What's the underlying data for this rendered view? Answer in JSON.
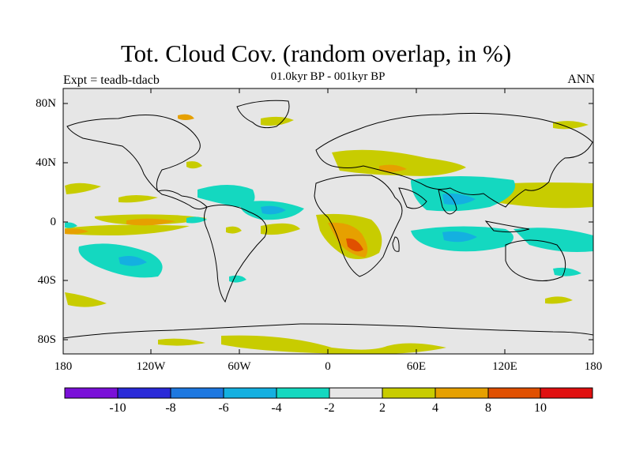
{
  "title": "Tot. Cloud Cov. (random overlap, in %)",
  "subtitle": "01.0kyr BP - 001kyr BP",
  "experiment_label": "Expt = teadb-tdacb",
  "season_label": "ANN",
  "lat_ticks": [
    "80N",
    "40N",
    "0",
    "40S",
    "80S"
  ],
  "lon_ticks": [
    "180",
    "120W",
    "60W",
    "0",
    "60E",
    "120E",
    "180"
  ],
  "colorbar": {
    "colors": [
      "#7a10d8",
      "#2a2ad8",
      "#1e78e0",
      "#14b0e0",
      "#14d8c0",
      "#e6e6e6",
      "#c8cc00",
      "#e6a000",
      "#e05000",
      "#e01010"
    ],
    "labels": [
      "-10",
      "-8",
      "-6",
      "-4",
      "-2",
      "2",
      "4",
      "8",
      "10"
    ]
  },
  "colors": {
    "background": "#e6e6e6",
    "coast": "#000000"
  }
}
